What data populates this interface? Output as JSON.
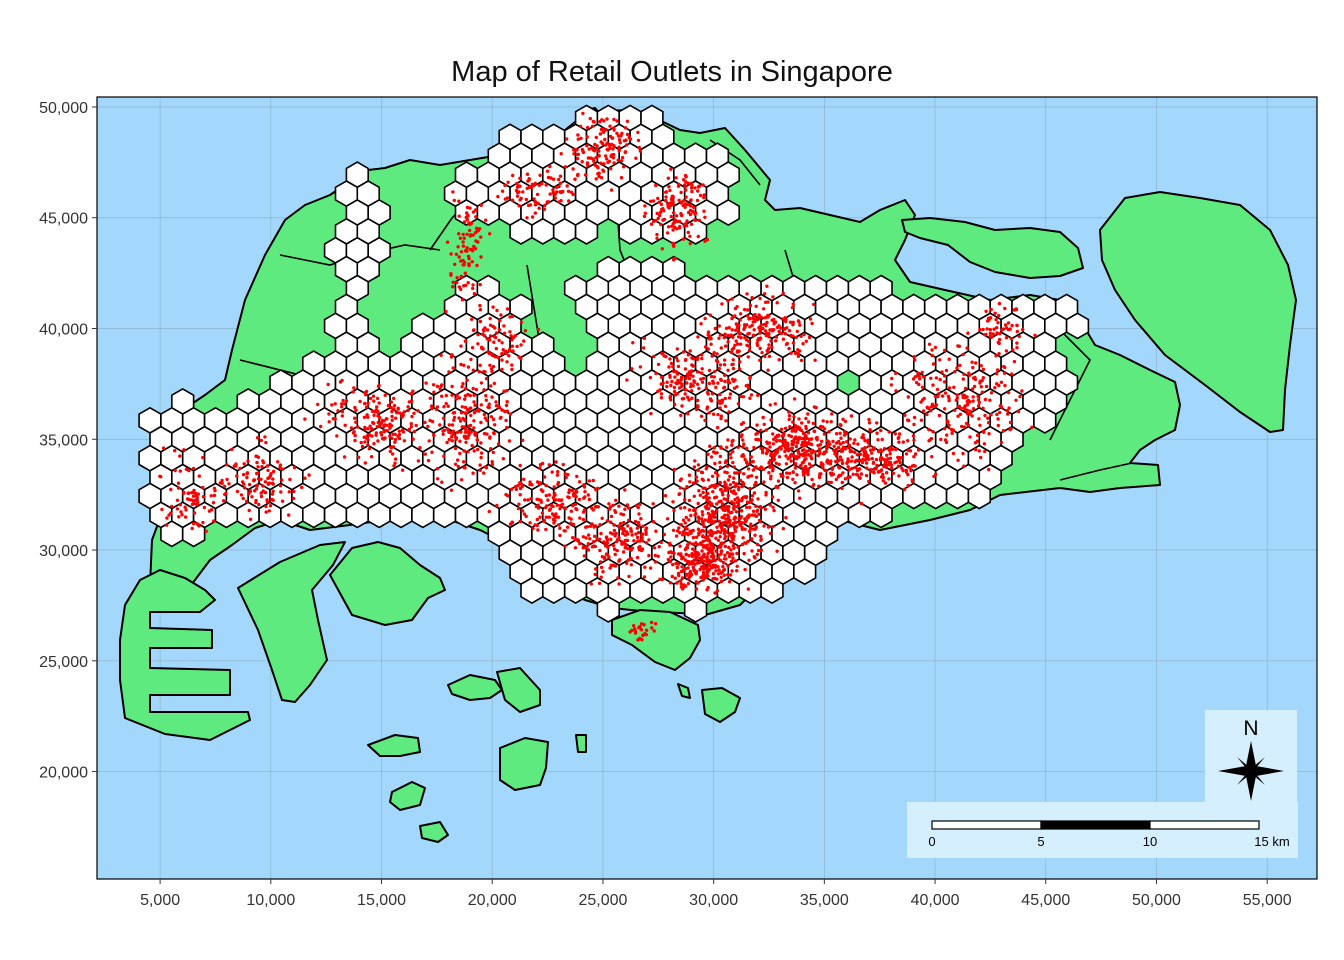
{
  "title": "Map of Retail Outlets in Singapore",
  "colors": {
    "sea": "#a3d8fc",
    "land": "#5fea7f",
    "hex_fill": "#ffffff",
    "outlet_points": "#ff0000",
    "outline": "#000000",
    "grid": "#8aa7b8",
    "scalebar_panel": "#d6efff"
  },
  "map": {
    "x_range": [
      2150,
      57250
    ],
    "y_range": [
      15150,
      50450
    ],
    "x_ticks": [
      5000,
      10000,
      15000,
      20000,
      25000,
      30000,
      35000,
      40000,
      45000,
      50000,
      55000
    ],
    "y_ticks": [
      20000,
      25000,
      30000,
      35000,
      40000,
      45000,
      50000
    ],
    "x_tick_labels": [
      "5,000",
      "10,000",
      "15,000",
      "20,000",
      "25,000",
      "30,000",
      "35,000",
      "40,000",
      "45,000",
      "50,000",
      "55,000"
    ],
    "y_tick_labels": [
      "20,000",
      "25,000",
      "30,000",
      "35,000",
      "40,000",
      "45,000",
      "50,000"
    ],
    "grid": true
  },
  "north_arrow": {
    "label": "N",
    "icon": "compass-star-icon"
  },
  "scale_bar": {
    "labels": [
      "0",
      "5",
      "10",
      "15 km"
    ],
    "segments_km": [
      5,
      5,
      5
    ]
  },
  "layers": [
    {
      "name": "planning subzones",
      "style": "green polygons"
    },
    {
      "name": "hexagon grid",
      "style": "white hexagons"
    },
    {
      "name": "retail outlets",
      "style": "red points"
    }
  ]
}
